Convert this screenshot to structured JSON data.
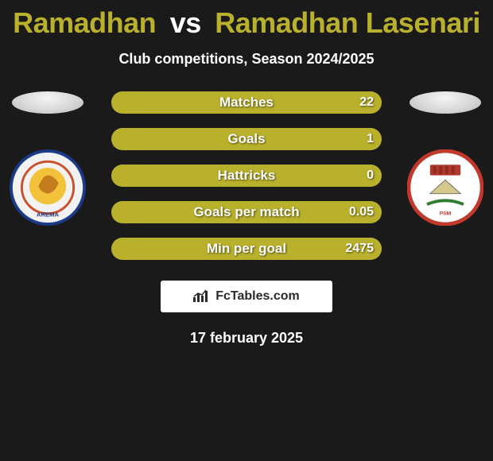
{
  "title_parts": {
    "p1": "Ramadhan",
    "vs": "vs",
    "p2": "Ramadhan Lasenari"
  },
  "title_colors": {
    "p1": "#b9b02c",
    "vs": "#ffffff",
    "p2": "#b9b02c"
  },
  "subtitle": "Club competitions, Season 2024/2025",
  "date": "17 february 2025",
  "attribution": "FcTables.com",
  "bar_style": {
    "track_color": "#606060",
    "left_color": "#b9b02c",
    "right_color": "#b9b02c",
    "height": 28,
    "radius": 14,
    "label_fontsize": 17,
    "value_fontsize": 16
  },
  "rows": [
    {
      "label": "Matches",
      "left": "",
      "right": "22",
      "left_pct": 0,
      "right_pct": 100
    },
    {
      "label": "Goals",
      "left": "",
      "right": "1",
      "left_pct": 0,
      "right_pct": 100
    },
    {
      "label": "Hattricks",
      "left": "",
      "right": "0",
      "left_pct": 0,
      "right_pct": 100
    },
    {
      "label": "Goals per match",
      "left": "",
      "right": "0.05",
      "left_pct": 0,
      "right_pct": 100
    },
    {
      "label": "Min per goal",
      "left": "",
      "right": "2475",
      "left_pct": 0,
      "right_pct": 100
    }
  ],
  "clubs": {
    "left": {
      "name": "Arema",
      "badge_bg": "#f2f2f2",
      "ring": "#1c3a8a",
      "accent": "#e2b400"
    },
    "right": {
      "name": "PSM Makassar",
      "badge_bg": "#ffffff",
      "ring": "#c0392b",
      "accent": "#b03a2e"
    }
  }
}
